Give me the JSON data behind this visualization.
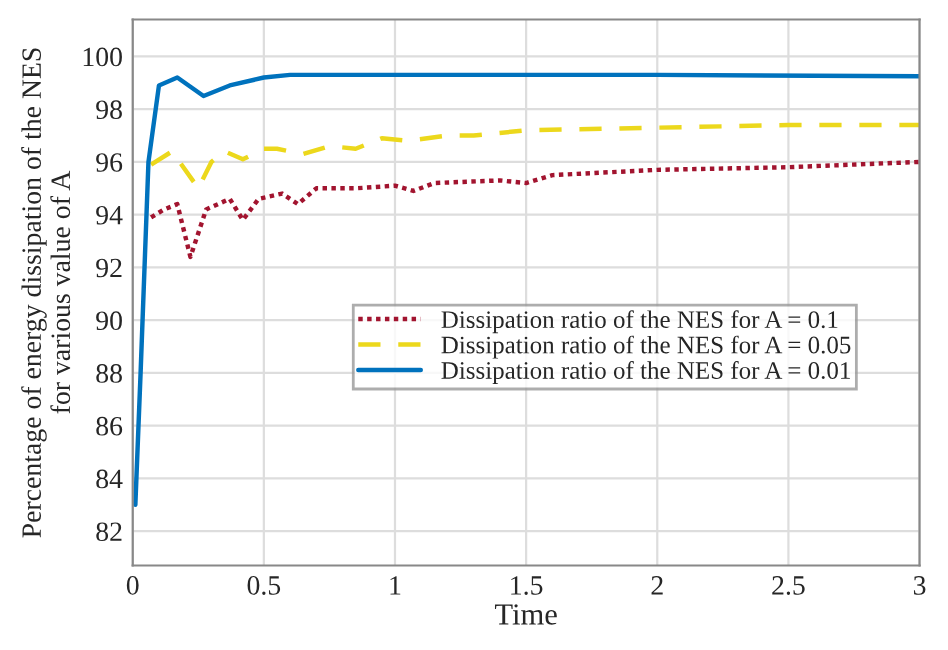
{
  "chart_data": {
    "type": "line",
    "xlabel": "Time",
    "ylabel": "Percentage of energy dissipation of the NES\nfor various value of A",
    "xlim": [
      0,
      3
    ],
    "ylim": [
      80.7,
      101.4
    ],
    "xticks": [
      0,
      0.5,
      1,
      1.5,
      2,
      2.5,
      3
    ],
    "yticks": [
      82,
      84,
      86,
      88,
      90,
      92,
      94,
      96,
      98,
      100
    ],
    "grid": true,
    "legend": "center",
    "series": [
      {
        "name": "Dissipation ratio of the NES for A = 0.1",
        "color": "#a2142f",
        "line_style": "dotted",
        "x": [
          0.07,
          0.12,
          0.17,
          0.22,
          0.28,
          0.37,
          0.42,
          0.48,
          0.57,
          0.63,
          0.7,
          0.85,
          1.0,
          1.07,
          1.15,
          1.4,
          1.5,
          1.6,
          2.0,
          2.5,
          3.0
        ],
        "values": [
          93.9,
          94.2,
          94.4,
          92.4,
          94.2,
          94.6,
          93.8,
          94.6,
          94.8,
          94.4,
          95.0,
          95.0,
          95.1,
          94.9,
          95.2,
          95.3,
          95.2,
          95.5,
          95.7,
          95.8,
          96.0
        ]
      },
      {
        "name": "Dissipation ratio of the NES for A = 0.05",
        "color": "#ecd81c",
        "line_style": "dashed",
        "x": [
          0.07,
          0.15,
          0.25,
          0.3,
          0.35,
          0.42,
          0.5,
          0.55,
          0.65,
          0.75,
          0.85,
          0.95,
          1.05,
          1.2,
          1.3,
          1.5,
          2.0,
          2.5,
          3.0
        ],
        "values": [
          95.9,
          96.4,
          95.0,
          96.0,
          96.4,
          96.1,
          96.5,
          96.5,
          96.3,
          96.6,
          96.5,
          96.9,
          96.8,
          97.0,
          97.0,
          97.2,
          97.3,
          97.4,
          97.4
        ]
      },
      {
        "name": "Dissipation ratio of the NES for A = 0.01",
        "color": "#0072bd",
        "line_style": "solid",
        "x": [
          0.01,
          0.03,
          0.06,
          0.1,
          0.17,
          0.27,
          0.37,
          0.5,
          0.6,
          1.0,
          2.0,
          3.0
        ],
        "values": [
          83.0,
          88.0,
          96.0,
          98.9,
          99.2,
          98.5,
          98.9,
          99.2,
          99.3,
          99.3,
          99.3,
          99.25
        ]
      }
    ]
  }
}
